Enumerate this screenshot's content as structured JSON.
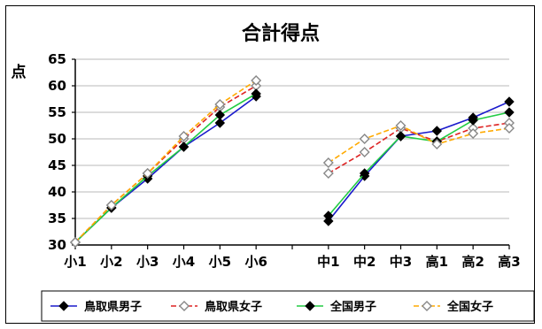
{
  "chart_data": {
    "type": "line",
    "title": "合計得点",
    "ylabel": "点",
    "xlabel": "",
    "ylim": [
      30,
      65
    ],
    "yticks": [
      30,
      35,
      40,
      45,
      50,
      55,
      60,
      65
    ],
    "categories": [
      "小1",
      "小2",
      "小3",
      "小4",
      "小5",
      "小6",
      "",
      "中1",
      "中2",
      "中3",
      "高1",
      "高2",
      "高3"
    ],
    "grid": "horizontal",
    "legend_position": "bottom",
    "series": [
      {
        "name": "鳥取県男子",
        "color": "#1a1acc",
        "line_style": "solid",
        "marker": "filled-diamond",
        "marker_color": "#000000",
        "values": [
          30.5,
          37,
          42.5,
          48.5,
          53,
          58,
          null,
          34.5,
          43,
          50.5,
          51.5,
          54,
          57
        ]
      },
      {
        "name": "鳥取県女子",
        "color": "#dd2222",
        "line_style": "dashed",
        "marker": "open-diamond",
        "marker_color": "#888888",
        "values": [
          30.5,
          37.5,
          43.5,
          50,
          56,
          60,
          null,
          43.5,
          47.5,
          52,
          49.5,
          52,
          53
        ]
      },
      {
        "name": "全国男子",
        "color": "#22cc44",
        "line_style": "solid",
        "marker": "filled-diamond",
        "marker_color": "#000000",
        "values": [
          30.5,
          37,
          43,
          48.5,
          54.5,
          58.5,
          null,
          35.5,
          43.5,
          50.5,
          49.5,
          53.5,
          55
        ]
      },
      {
        "name": "全国女子",
        "color": "#ffaa00",
        "line_style": "dashed",
        "marker": "open-diamond",
        "marker_color": "#888888",
        "values": [
          30.5,
          37.5,
          43.5,
          50.5,
          56.5,
          61,
          null,
          45.5,
          50,
          52.5,
          49,
          51,
          52
        ]
      }
    ]
  }
}
